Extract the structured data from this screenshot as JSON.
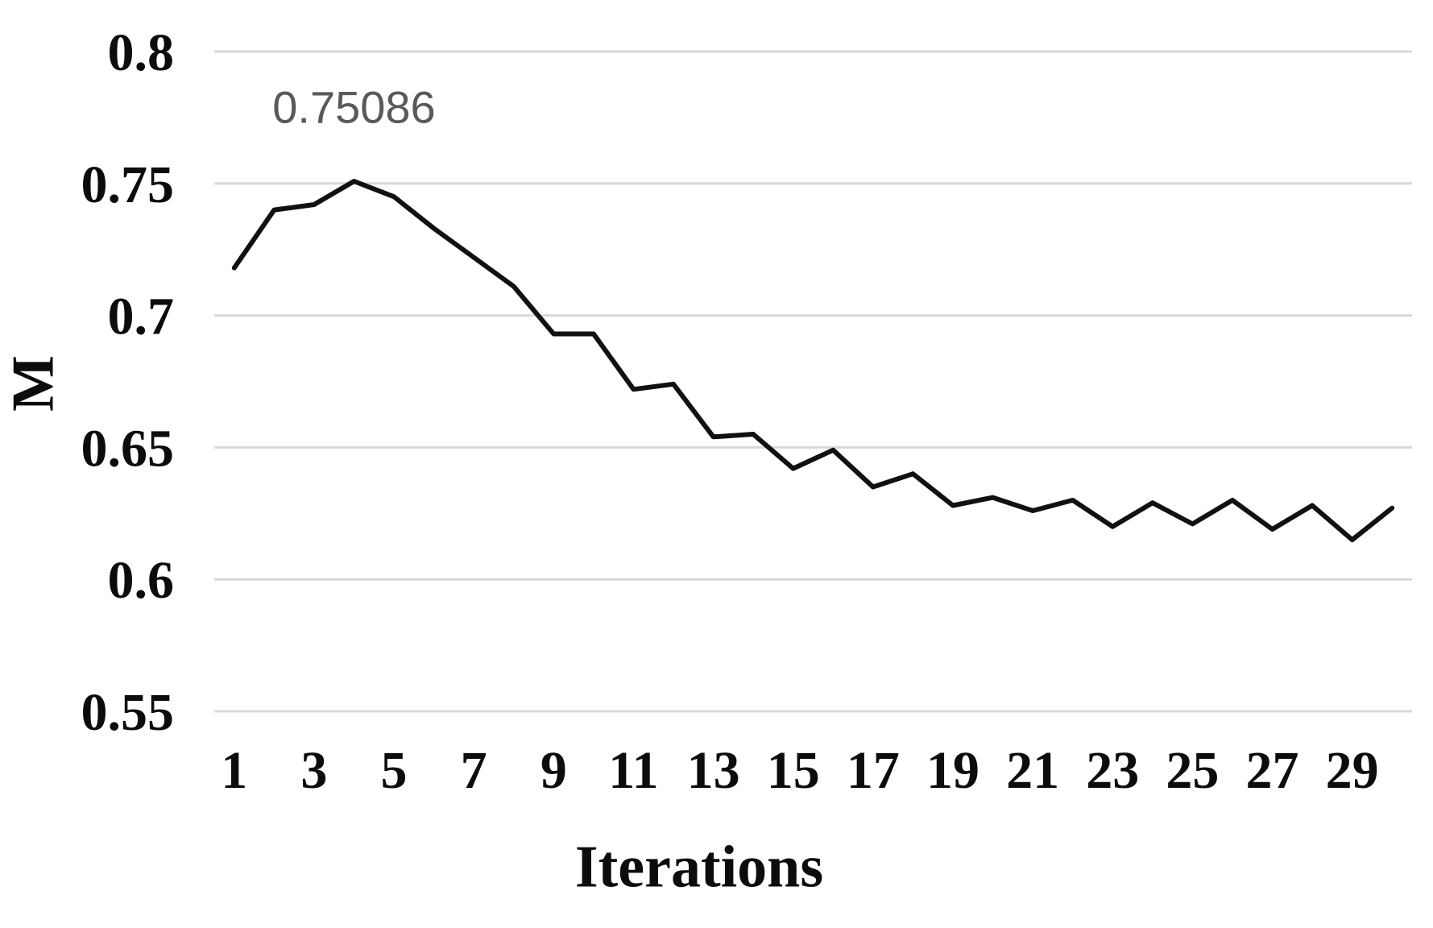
{
  "chart_data": {
    "type": "line",
    "title": "",
    "xlabel": "Iterations",
    "ylabel": "M",
    "x": [
      1,
      2,
      3,
      4,
      5,
      6,
      7,
      8,
      9,
      10,
      11,
      12,
      13,
      14,
      15,
      16,
      17,
      18,
      19,
      20,
      21,
      22,
      23,
      24,
      25,
      26,
      27,
      28,
      29,
      30
    ],
    "values": [
      0.718,
      0.74,
      0.742,
      0.75086,
      0.745,
      0.733,
      0.722,
      0.711,
      0.693,
      0.693,
      0.672,
      0.674,
      0.654,
      0.655,
      0.642,
      0.649,
      0.635,
      0.64,
      0.628,
      0.631,
      0.626,
      0.63,
      0.62,
      0.629,
      0.621,
      0.63,
      0.619,
      0.628,
      0.615,
      0.627
    ],
    "series_name": "M",
    "x_ticks": [
      1,
      3,
      5,
      7,
      9,
      11,
      13,
      15,
      17,
      19,
      21,
      23,
      25,
      27,
      29
    ],
    "y_ticks": [
      0.8,
      0.75,
      0.7,
      0.65,
      0.6,
      0.55
    ],
    "ylim": [
      0.55,
      0.8
    ],
    "xlim_categories": 30,
    "grid": "horizontal",
    "legend": "none",
    "annotation": {
      "text": "0.75086",
      "at_x": 4,
      "at_y": 0.75086
    },
    "colors": {
      "line": "#111111",
      "grid": "#d9d9d9",
      "tick_text": "#0c0c0c",
      "annotation_text": "#595959",
      "background": "#ffffff"
    }
  }
}
